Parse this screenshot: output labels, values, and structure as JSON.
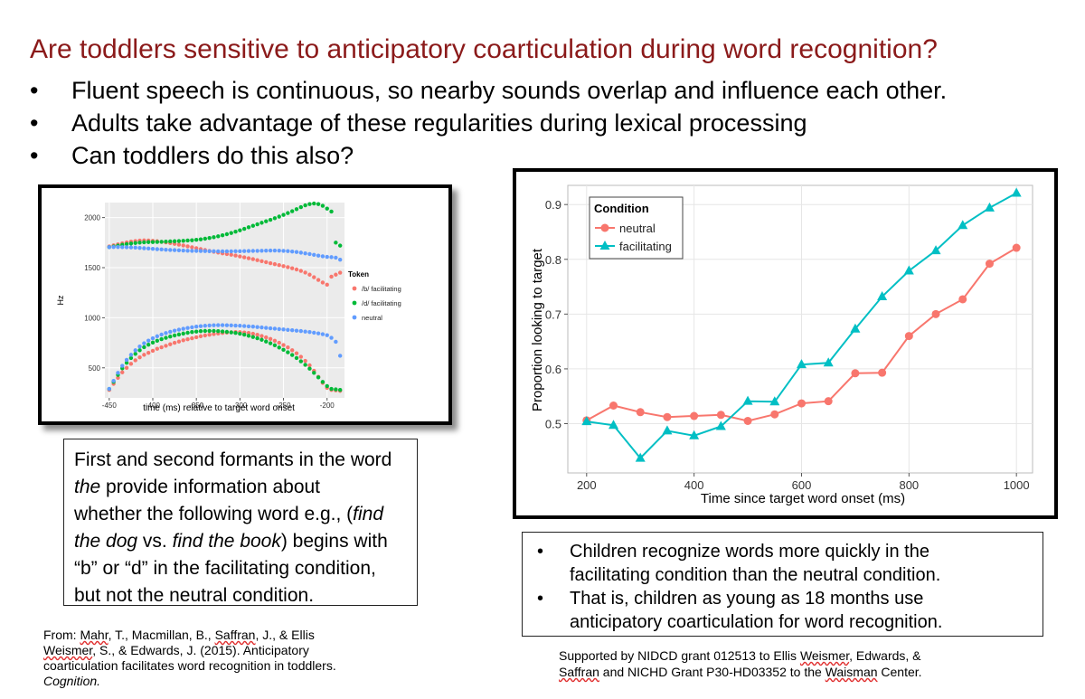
{
  "slide": {
    "title": "Are toddlers sensitive to anticipatory coarticulation during word recognition?",
    "bullet_char": "•",
    "bullets": [
      "Fluent speech is continuous, so nearby sounds overlap and influence each other.",
      "Adults take advantage of these regularities during lexical processing",
      "Can toddlers do this also?"
    ],
    "left_box": {
      "line1": "First and second formants in the word",
      "line2_em": "the",
      "line2_rest": " provide information about",
      "line3": "whether the following word e.g., (",
      "line3_em": "find",
      "line4_em1": "the dog",
      "line4_mid": " vs. ",
      "line4_em2": "find the book",
      "line4_end": ") begins with",
      "line5": "“b” or “d” in the facilitating condition,",
      "line6": "but not the neutral condition."
    },
    "right_box": {
      "b1_l1": "Children recognize words more quickly in the",
      "b1_l2": "facilitating condition than the neutral condition.",
      "b2_l1": "That is, children as young as 18 months use",
      "b2_l2": "anticipatory coarticulation for word recognition."
    },
    "reference": {
      "l1_a": "From: ",
      "l1_mahr": "Mahr",
      "l1_b": ", T., Macmillan, B., ",
      "l1_saffran": "Saffran",
      "l1_c": ", J., & Ellis",
      "l2_weismer": "Weismer",
      "l2_b": ", S., & Edwards, J. (2015). Anticipatory",
      "l3": "coarticulation facilitates word recognition in toddlers.",
      "l4": "Cognition."
    },
    "support": {
      "l1_a": "Supported by NIDCD grant 012513 to Ellis ",
      "l1_weismer": "Weismer",
      "l1_b": ", Edwards, &",
      "l2_saffran": "Saffran",
      "l2_b": " and NICHD Grant P30-HD03352 to the ",
      "l2_waisman": "Waisman",
      "l2_c": " Center."
    }
  },
  "chart_data": [
    {
      "type": "scatter",
      "xlabel": "time (ms) relative to target word onset",
      "ylabel": "Hz",
      "xlim": [
        -455,
        -180
      ],
      "ylim": [
        200,
        2150
      ],
      "xticks": [
        -450,
        -400,
        -350,
        -300,
        -250,
        -200
      ],
      "yticks": [
        500,
        1000,
        1500,
        2000
      ],
      "legend_title": "Token",
      "legend_position": "right",
      "grid": true,
      "background": "#ebebeb",
      "x": [
        -450,
        -445,
        -440,
        -435,
        -430,
        -425,
        -420,
        -415,
        -410,
        -405,
        -400,
        -395,
        -390,
        -385,
        -380,
        -375,
        -370,
        -365,
        -360,
        -355,
        -350,
        -345,
        -340,
        -335,
        -330,
        -325,
        -320,
        -315,
        -310,
        -305,
        -300,
        -295,
        -290,
        -285,
        -280,
        -275,
        -270,
        -265,
        -260,
        -255,
        -250,
        -245,
        -240,
        -235,
        -230,
        -225,
        -220,
        -215,
        -210,
        -205,
        -200,
        -195,
        -190,
        -185
      ],
      "series": [
        {
          "name": "/b/ facilitating",
          "color": "#f8766d",
          "f2": [
            1712,
            1723,
            1733,
            1743,
            1752,
            1760,
            1766,
            1770,
            1772,
            1771,
            1768,
            1764,
            1758,
            1752,
            1745,
            1738,
            1730,
            1722,
            1713,
            1704,
            1694,
            1685,
            1676,
            1667,
            1659,
            1651,
            1643,
            1636,
            1629,
            1621,
            1612,
            1603,
            1594,
            1585,
            1575,
            1565,
            1555,
            1545,
            1535,
            1525,
            1515,
            1505,
            1494,
            1482,
            1468,
            1451,
            1430,
            1405,
            1378,
            1352,
            1330,
            1410,
            1430,
            1450
          ],
          "f1": [
            280,
            340,
            400,
            455,
            500,
            540,
            575,
            605,
            630,
            650,
            670,
            690,
            705,
            720,
            735,
            750,
            762,
            775,
            785,
            795,
            805,
            815,
            823,
            830,
            837,
            843,
            848,
            852,
            855,
            857,
            856,
            853,
            848,
            840,
            830,
            818,
            804,
            788,
            770,
            750,
            728,
            704,
            676,
            645,
            610,
            570,
            525,
            470,
            410,
            350,
            300,
            280,
            275,
            270
          ]
        },
        {
          "name": "/d/ facilitating",
          "color": "#00ba38",
          "f2": [
            1705,
            1712,
            1720,
            1728,
            1735,
            1741,
            1746,
            1750,
            1753,
            1755,
            1756,
            1757,
            1758,
            1760,
            1762,
            1764,
            1766,
            1768,
            1771,
            1774,
            1778,
            1783,
            1789,
            1796,
            1804,
            1813,
            1823,
            1834,
            1846,
            1859,
            1873,
            1888,
            1903,
            1918,
            1933,
            1948,
            1963,
            1978,
            1994,
            2010,
            2027,
            2045,
            2064,
            2084,
            2104,
            2122,
            2135,
            2140,
            2135,
            2118,
            2090,
            2060,
            1750,
            1720
          ],
          "f1": [
            290,
            360,
            430,
            495,
            550,
            598,
            640,
            676,
            706,
            731,
            752,
            770,
            786,
            800,
            812,
            823,
            833,
            842,
            850,
            857,
            862,
            866,
            868,
            869,
            868,
            866,
            863,
            859,
            854,
            848,
            840,
            831,
            820,
            808,
            795,
            780,
            763,
            745,
            725,
            703,
            680,
            655,
            628,
            598,
            565,
            530,
            492,
            450,
            405,
            360,
            318,
            290,
            285,
            280
          ]
        },
        {
          "name": "neutral",
          "color": "#619cff",
          "f2": [
            1705,
            1706,
            1706,
            1705,
            1704,
            1702,
            1700,
            1697,
            1694,
            1691,
            1688,
            1685,
            1682,
            1679,
            1677,
            1675,
            1673,
            1671,
            1669,
            1668,
            1667,
            1666,
            1665,
            1664,
            1664,
            1663,
            1663,
            1663,
            1663,
            1664,
            1664,
            1665,
            1666,
            1667,
            1668,
            1669,
            1670,
            1671,
            1671,
            1670,
            1668,
            1665,
            1661,
            1656,
            1650,
            1643,
            1636,
            1628,
            1620,
            1613,
            1608,
            1605,
            1600,
            1580
          ],
          "f1": [
            290,
            370,
            450,
            520,
            580,
            630,
            675,
            713,
            745,
            772,
            795,
            815,
            832,
            847,
            860,
            871,
            881,
            890,
            898,
            905,
            911,
            916,
            920,
            923,
            925,
            926,
            926,
            925,
            924,
            922,
            920,
            917,
            914,
            911,
            907,
            903,
            899,
            895,
            891,
            887,
            883,
            879,
            875,
            871,
            867,
            862,
            857,
            851,
            844,
            836,
            826,
            800,
            760,
            620
          ]
        }
      ]
    },
    {
      "type": "line",
      "xlabel": "Time since target word onset (ms)",
      "ylabel": "Proportion looking to target",
      "xlim": [
        165,
        1030
      ],
      "ylim": [
        0.41,
        0.935
      ],
      "xticks": [
        200,
        400,
        600,
        800,
        1000
      ],
      "yticks": [
        0.5,
        0.6,
        0.7,
        0.8,
        0.9
      ],
      "grid": true,
      "legend_title": "Condition",
      "legend_position": "top-left",
      "x": [
        200,
        250,
        300,
        350,
        400,
        450,
        500,
        550,
        600,
        650,
        700,
        750,
        800,
        850,
        900,
        950,
        1000
      ],
      "series": [
        {
          "name": "neutral",
          "color": "#f8766d",
          "marker": "circle",
          "values": [
            0.506,
            0.533,
            0.521,
            0.512,
            0.514,
            0.516,
            0.505,
            0.517,
            0.537,
            0.541,
            0.592,
            0.593,
            0.66,
            0.7,
            0.727,
            0.792,
            0.821
          ]
        },
        {
          "name": "facilitating",
          "color": "#00bfc4",
          "marker": "triangle",
          "values": [
            0.504,
            0.497,
            0.437,
            0.487,
            0.478,
            0.495,
            0.541,
            0.54,
            0.608,
            0.611,
            0.673,
            0.732,
            0.779,
            0.816,
            0.862,
            0.894,
            0.921
          ]
        }
      ]
    }
  ]
}
